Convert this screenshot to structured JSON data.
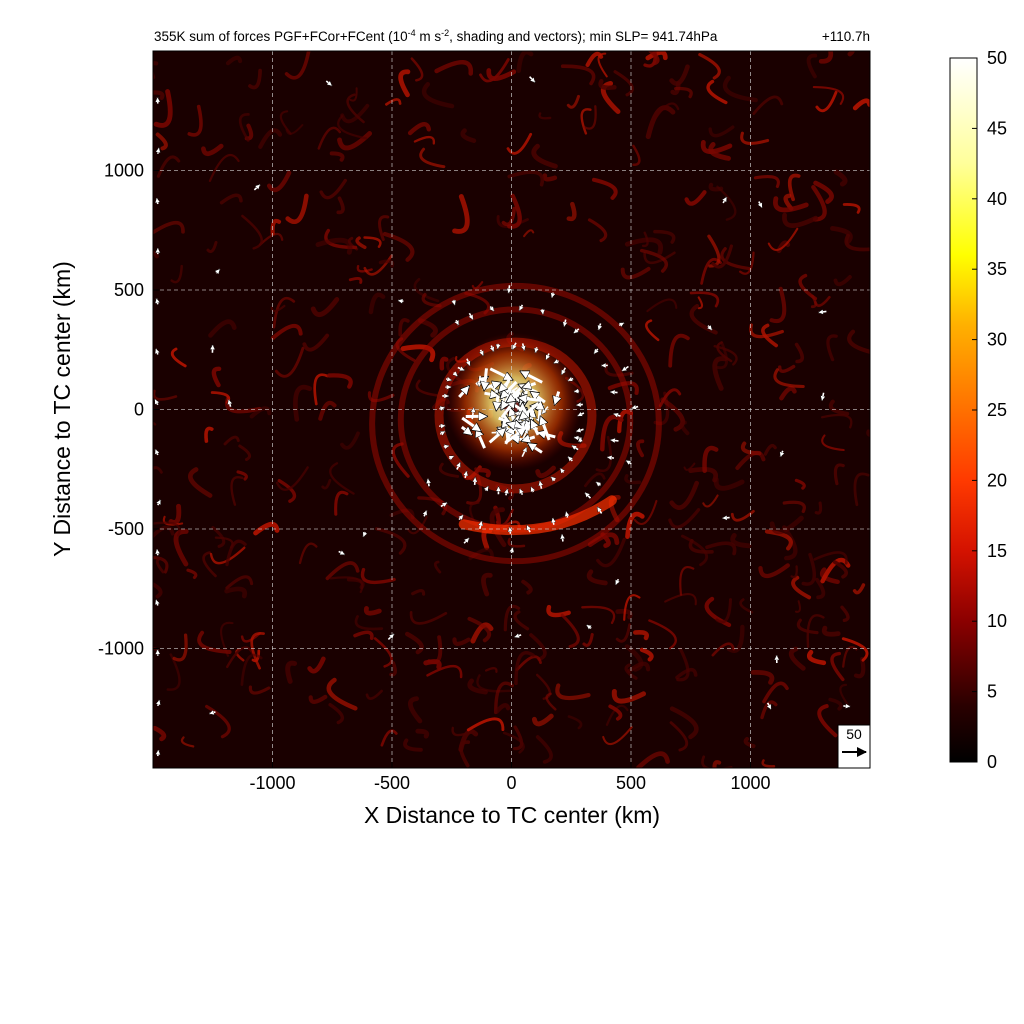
{
  "chart_data": {
    "type": "heatmap",
    "title_parts": {
      "prefix": "355K sum of forces PGF+FCor+FCent (10",
      "unit_exp1": "-4",
      "unit_mid": " m s",
      "unit_exp2": "-2",
      "suffix": ", shading and vectors); min SLP= 941.74hPa"
    },
    "time_label": "+110.7h",
    "xlabel": "X Distance to TC center (km)",
    "ylabel": "Y Distance to TC center (km)",
    "xlim": [
      -1500,
      1500
    ],
    "ylim": [
      -1500,
      1500
    ],
    "x_ticks": [
      -1000,
      -500,
      0,
      500,
      1000
    ],
    "y_ticks": [
      -1000,
      -500,
      0,
      500,
      1000
    ],
    "x_tick_labels": [
      "-1000",
      "-500",
      "0",
      "500",
      "1000"
    ],
    "y_tick_labels": [
      "-1000",
      "-500",
      "0",
      "500",
      "1000"
    ],
    "grid": "dashed",
    "colorbar": {
      "min": 0,
      "max": 50,
      "ticks": [
        0,
        5,
        10,
        15,
        20,
        25,
        30,
        35,
        40,
        45,
        50
      ],
      "tick_labels": [
        "0",
        "5",
        "10",
        "15",
        "20",
        "25",
        "30",
        "35",
        "40",
        "45",
        "50"
      ],
      "colormap": "hot"
    },
    "reference_vector": {
      "value": 50,
      "label": "50"
    },
    "features": {
      "eyewall_radius_km": 180,
      "rainbands_km": [
        320,
        480,
        600
      ],
      "peak_value": 50
    }
  }
}
